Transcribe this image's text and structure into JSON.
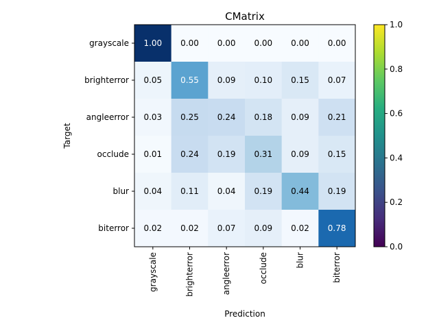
{
  "chart_data": {
    "type": "heatmap",
    "title": "CMatrix",
    "xlabel": "Prediction",
    "ylabel": "Target",
    "x_categories": [
      "grayscale",
      "brighterror",
      "angleerror",
      "occlude",
      "blur",
      "biterror"
    ],
    "y_categories": [
      "grayscale",
      "brighterror",
      "angleerror",
      "occlude",
      "blur",
      "biterror"
    ],
    "matrix": [
      [
        1.0,
        0.0,
        0.0,
        0.0,
        0.0,
        0.0
      ],
      [
        0.05,
        0.55,
        0.09,
        0.1,
        0.15,
        0.07
      ],
      [
        0.03,
        0.25,
        0.24,
        0.18,
        0.09,
        0.21
      ],
      [
        0.01,
        0.24,
        0.19,
        0.31,
        0.09,
        0.15
      ],
      [
        0.04,
        0.11,
        0.04,
        0.19,
        0.44,
        0.19
      ],
      [
        0.02,
        0.02,
        0.07,
        0.09,
        0.02,
        0.78
      ]
    ],
    "value_range": [
      0,
      1
    ],
    "cell_colormap": "Blues",
    "colorbar": {
      "colormap": "viridis",
      "range": [
        0.0,
        1.0
      ],
      "ticks": [
        "0.0",
        "0.2",
        "0.4",
        "0.6",
        "0.8",
        "1.0"
      ]
    },
    "grid": false,
    "legend": "colorbar-right"
  }
}
